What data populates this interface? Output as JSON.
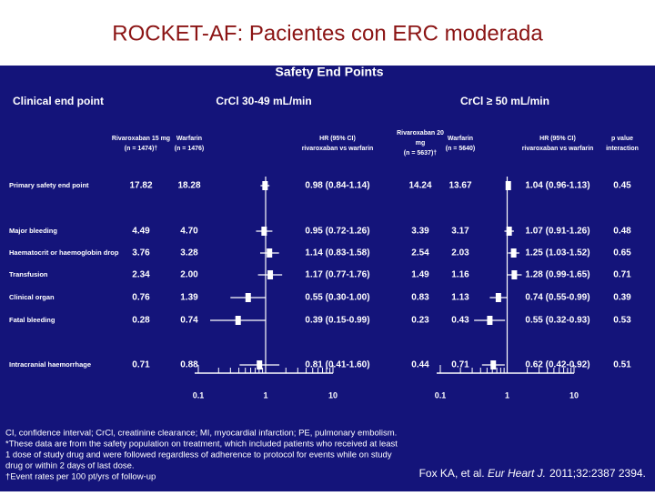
{
  "title": "ROCKET-AF: Pacientes con ERC moderada",
  "panel": {
    "heading": "Safety End Points",
    "group_headers": {
      "endpoint": "Clinical end point",
      "crcl_low": "CrCl 30-49 mL/min",
      "crcl_high": "CrCl ≥ 50 mL/min"
    },
    "col_headers": {
      "riva1": [
        "Rivaroxaban 15 mg",
        "(n = 1474)†"
      ],
      "warf1": [
        "Warfarin",
        "(n = 1476)"
      ],
      "hr1": [
        "HR (95% CI)",
        "rivaroxaban vs warfarin"
      ],
      "riva2": [
        "Rivaroxaban 20",
        "mg",
        "(n = 5637)†"
      ],
      "warf2": [
        "Warfarin",
        "(n = 5640)"
      ],
      "hr2": [
        "HR (95% CI)",
        "rivaroxaban vs warfarin"
      ],
      "p": [
        "p value",
        "interaction"
      ]
    },
    "rows": [
      {
        "label": "Primary safety end point",
        "riva1": "17.82",
        "warf1": "18.28",
        "hr1": "0.98 (0.84-1.14)",
        "riva2": "14.24",
        "warf2": "13.67",
        "hr2": "1.04 (0.96-1.13)",
        "p": "0.45"
      },
      {
        "label": "Major bleeding",
        "riva1": "4.49",
        "warf1": "4.70",
        "hr1": "0.95 (0.72-1.26)",
        "riva2": "3.39",
        "warf2": "3.17",
        "hr2": "1.07 (0.91-1.26)",
        "p": "0.48"
      },
      {
        "label": "Haematocrit or haemoglobin drop",
        "riva1": "3.76",
        "warf1": "3.28",
        "hr1": "1.14 (0.83-1.58)",
        "riva2": "2.54",
        "warf2": "2.03",
        "hr2": "1.25 (1.03-1.52)",
        "p": "0.65"
      },
      {
        "label": "Transfusion",
        "riva1": "2.34",
        "warf1": "2.00",
        "hr1": "1.17 (0.77-1.76)",
        "riva2": "1.49",
        "warf2": "1.16",
        "hr2": "1.28 (0.99-1.65)",
        "p": "0.71"
      },
      {
        "label": "Clinical organ",
        "riva1": "0.76",
        "warf1": "1.39",
        "hr1": "0.55 (0.30-1.00)",
        "riva2": "0.83",
        "warf2": "1.13",
        "hr2": "0.74 (0.55-0.99)",
        "p": "0.39"
      },
      {
        "label": "Fatal bleeding",
        "riva1": "0.28",
        "warf1": "0.74",
        "hr1": "0.39 (0.15-0.99)",
        "riva2": "0.23",
        "warf2": "0.43",
        "hr2": "0.55 (0.32-0.93)",
        "p": "0.53"
      },
      {
        "label": "Intracranial haemorrhage",
        "riva1": "0.71",
        "warf1": "0.88",
        "hr1": "0.81 (0.41-1.60)",
        "riva2": "0.44",
        "warf2": "0.71",
        "hr2": "0.62 (0.42-0.92)",
        "p": "0.51"
      }
    ],
    "axis": {
      "scale": "log",
      "ticks": [
        0.1,
        1,
        10
      ]
    },
    "footnotes": [
      "CI, confidence interval; CrCl, creatinine clearance; MI, myocardial infarction; PE, pulmonary embolism.",
      "*These data are from the safety population on treatment, which included patients who received at least",
      "1 dose of study drug and were followed regardless of adherence to protocol for events while on study",
      "drug or within 2 days of last dose.",
      "†Event rates per 100 pt/yrs of follow-up"
    ],
    "citation": {
      "authors": "Fox KA, et al.",
      "journal": "Eur Heart J.",
      "ref": "2011;32:2387 2394."
    }
  }
}
